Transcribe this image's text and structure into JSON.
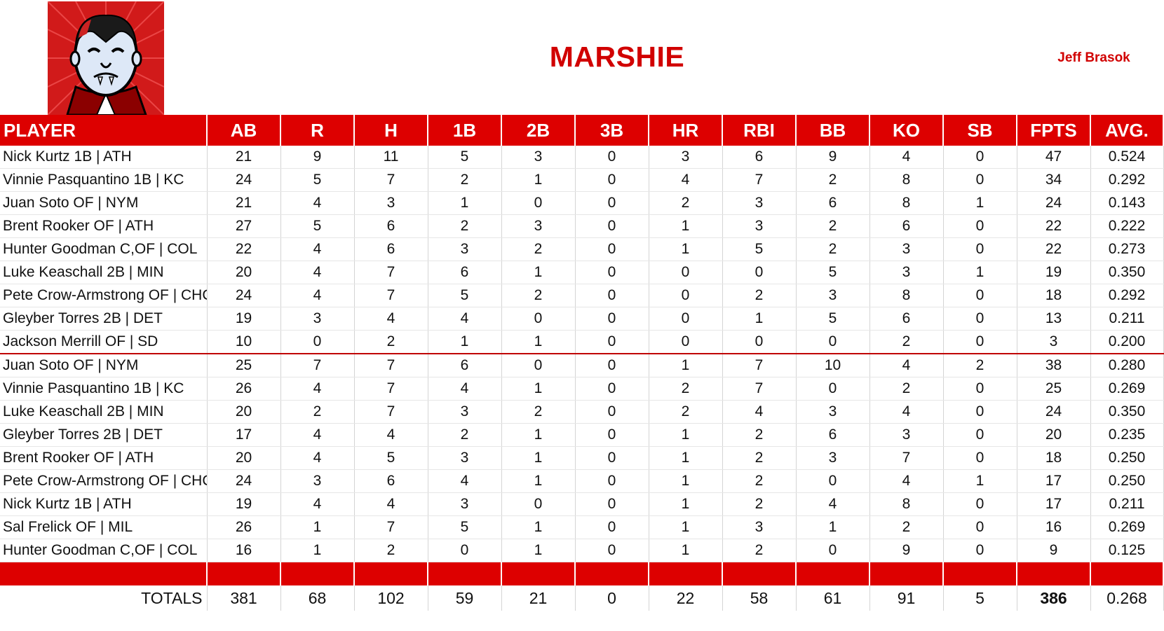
{
  "team_name": "MARSHIE",
  "owner_name": "Jeff Brasok",
  "logo": {
    "icon": "vampire-mascot-icon",
    "background": "#d11a1a"
  },
  "colors": {
    "accent": "#dd0000",
    "title": "#d10000"
  },
  "columns": [
    "PLAYER",
    "AB",
    "R",
    "H",
    "1B",
    "2B",
    "3B",
    "HR",
    "RBI",
    "BB",
    "KO",
    "SB",
    "FPTS",
    "AVG."
  ],
  "rows": [
    {
      "player": "Nick Kurtz 1B | ATH",
      "stats": [
        "21",
        "9",
        "11",
        "5",
        "3",
        "0",
        "3",
        "6",
        "9",
        "4",
        "0",
        "47",
        "0.524"
      ]
    },
    {
      "player": "Vinnie Pasquantino 1B | KC",
      "stats": [
        "24",
        "5",
        "7",
        "2",
        "1",
        "0",
        "4",
        "7",
        "2",
        "8",
        "0",
        "34",
        "0.292"
      ]
    },
    {
      "player": "Juan Soto OF | NYM",
      "stats": [
        "21",
        "4",
        "3",
        "1",
        "0",
        "0",
        "2",
        "3",
        "6",
        "8",
        "1",
        "24",
        "0.143"
      ]
    },
    {
      "player": "Brent Rooker OF | ATH",
      "stats": [
        "27",
        "5",
        "6",
        "2",
        "3",
        "0",
        "1",
        "3",
        "2",
        "6",
        "0",
        "22",
        "0.222"
      ]
    },
    {
      "player": "Hunter Goodman C,OF | COL",
      "stats": [
        "22",
        "4",
        "6",
        "3",
        "2",
        "0",
        "1",
        "5",
        "2",
        "3",
        "0",
        "22",
        "0.273"
      ]
    },
    {
      "player": "Luke Keaschall 2B | MIN",
      "stats": [
        "20",
        "4",
        "7",
        "6",
        "1",
        "0",
        "0",
        "0",
        "5",
        "3",
        "1",
        "19",
        "0.350"
      ]
    },
    {
      "player": "Pete Crow-Armstrong OF | CHC",
      "stats": [
        "24",
        "4",
        "7",
        "5",
        "2",
        "0",
        "0",
        "2",
        "3",
        "8",
        "0",
        "18",
        "0.292"
      ]
    },
    {
      "player": "Gleyber Torres 2B | DET",
      "stats": [
        "19",
        "3",
        "4",
        "4",
        "0",
        "0",
        "0",
        "1",
        "5",
        "6",
        "0",
        "13",
        "0.211"
      ]
    },
    {
      "player": "Jackson Merrill OF | SD",
      "stats": [
        "10",
        "0",
        "2",
        "1",
        "1",
        "0",
        "0",
        "0",
        "0",
        "2",
        "0",
        "3",
        "0.200"
      ]
    },
    {
      "player": "Juan Soto OF | NYM",
      "stats": [
        "25",
        "7",
        "7",
        "6",
        "0",
        "0",
        "1",
        "7",
        "10",
        "4",
        "2",
        "38",
        "0.280"
      ]
    },
    {
      "player": "Vinnie Pasquantino 1B | KC",
      "stats": [
        "26",
        "4",
        "7",
        "4",
        "1",
        "0",
        "2",
        "7",
        "0",
        "2",
        "0",
        "25",
        "0.269"
      ]
    },
    {
      "player": "Luke Keaschall 2B | MIN",
      "stats": [
        "20",
        "2",
        "7",
        "3",
        "2",
        "0",
        "2",
        "4",
        "3",
        "4",
        "0",
        "24",
        "0.350"
      ]
    },
    {
      "player": "Gleyber Torres 2B | DET",
      "stats": [
        "17",
        "4",
        "4",
        "2",
        "1",
        "0",
        "1",
        "2",
        "6",
        "3",
        "0",
        "20",
        "0.235"
      ]
    },
    {
      "player": "Brent Rooker OF | ATH",
      "stats": [
        "20",
        "4",
        "5",
        "3",
        "1",
        "0",
        "1",
        "2",
        "3",
        "7",
        "0",
        "18",
        "0.250"
      ]
    },
    {
      "player": "Pete Crow-Armstrong OF | CHC",
      "stats": [
        "24",
        "3",
        "6",
        "4",
        "1",
        "0",
        "1",
        "2",
        "0",
        "4",
        "1",
        "17",
        "0.250"
      ]
    },
    {
      "player": "Nick Kurtz 1B | ATH",
      "stats": [
        "19",
        "4",
        "4",
        "3",
        "0",
        "0",
        "1",
        "2",
        "4",
        "8",
        "0",
        "17",
        "0.211"
      ]
    },
    {
      "player": "Sal Frelick OF | MIL",
      "stats": [
        "26",
        "1",
        "7",
        "5",
        "1",
        "0",
        "1",
        "3",
        "1",
        "2",
        "0",
        "16",
        "0.269"
      ]
    },
    {
      "player": "Hunter Goodman C,OF | COL",
      "stats": [
        "16",
        "1",
        "2",
        "0",
        "1",
        "0",
        "1",
        "2",
        "0",
        "9",
        "0",
        "9",
        "0.125"
      ]
    }
  ],
  "totals": {
    "label": "TOTALS",
    "values": [
      "381",
      "68",
      "102",
      "59",
      "21",
      "0",
      "22",
      "58",
      "61",
      "91",
      "5",
      "386",
      "0.268"
    ]
  }
}
